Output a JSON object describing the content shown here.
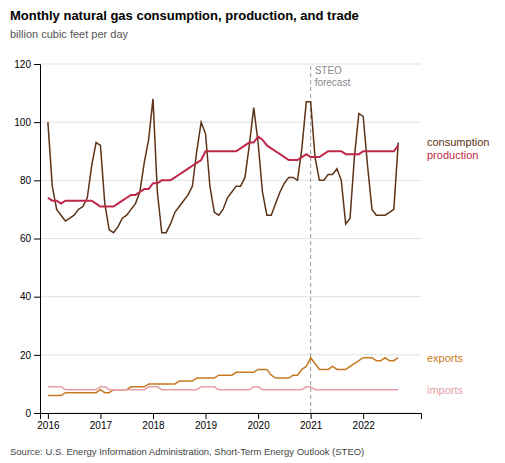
{
  "chart_data": {
    "type": "line",
    "title": "Monthly natural gas consumption, production, and trade",
    "subtitle": "billion cubic feet per day",
    "source": "Source: U.S. Energy Information Administration, Short-Term Energy Outlook (STEO)",
    "x": [
      2016.0,
      2016.083,
      2016.167,
      2016.25,
      2016.333,
      2016.417,
      2016.5,
      2016.583,
      2016.667,
      2016.75,
      2016.833,
      2016.917,
      2017.0,
      2017.083,
      2017.167,
      2017.25,
      2017.333,
      2017.417,
      2017.5,
      2017.583,
      2017.667,
      2017.75,
      2017.833,
      2017.917,
      2018.0,
      2018.083,
      2018.167,
      2018.25,
      2018.333,
      2018.417,
      2018.5,
      2018.583,
      2018.667,
      2018.75,
      2018.833,
      2018.917,
      2019.0,
      2019.083,
      2019.167,
      2019.25,
      2019.333,
      2019.417,
      2019.5,
      2019.583,
      2019.667,
      2019.75,
      2019.833,
      2019.917,
      2020.0,
      2020.083,
      2020.167,
      2020.25,
      2020.333,
      2020.417,
      2020.5,
      2020.583,
      2020.667,
      2020.75,
      2020.833,
      2020.917,
      2021.0,
      2021.083,
      2021.167,
      2021.25,
      2021.333,
      2021.417,
      2021.5,
      2021.583,
      2021.667,
      2021.75,
      2021.833,
      2021.917,
      2022.0,
      2022.083,
      2022.167,
      2022.25,
      2022.333,
      2022.417,
      2022.5,
      2022.583,
      2022.667
    ],
    "series": [
      {
        "name": "consumption",
        "color": "#5C3317",
        "values": [
          100,
          78,
          70,
          68,
          66,
          67,
          68,
          70,
          71,
          74,
          85,
          93,
          92,
          72,
          63,
          62,
          64,
          67,
          68,
          70,
          72,
          76,
          86,
          94,
          108,
          76,
          62,
          62,
          65,
          69,
          71,
          73,
          75,
          78,
          90,
          100,
          96,
          78,
          69,
          68,
          70,
          74,
          76,
          78,
          78,
          81,
          92,
          105,
          93,
          76,
          68,
          68,
          72,
          76,
          79,
          81,
          81,
          80,
          91,
          107,
          107,
          88,
          80,
          80,
          82,
          82,
          84,
          80,
          65,
          67,
          88,
          103,
          102,
          85,
          70,
          68,
          68,
          68,
          69,
          70,
          93
        ]
      },
      {
        "name": "production",
        "color": "#C0284A",
        "values": [
          74,
          73,
          73,
          72,
          73,
          73,
          73,
          73,
          73,
          73,
          73,
          72,
          71,
          71,
          71,
          71,
          72,
          73,
          74,
          75,
          75,
          76,
          77,
          77,
          79,
          79,
          80,
          80,
          80,
          81,
          82,
          83,
          84,
          85,
          86,
          87,
          90,
          90,
          90,
          90,
          90,
          90,
          90,
          90,
          91,
          92,
          93,
          93,
          95,
          94,
          92,
          91,
          90,
          89,
          88,
          87,
          87,
          87,
          88,
          89,
          88,
          88,
          88,
          89,
          90,
          90,
          90,
          90,
          89,
          89,
          89,
          89,
          90,
          90,
          90,
          90,
          90,
          90,
          90,
          90,
          92
        ]
      },
      {
        "name": "exports",
        "color": "#C87820",
        "values": [
          6,
          6,
          6,
          6,
          7,
          7,
          7,
          7,
          7,
          7,
          7,
          7,
          8,
          7,
          7,
          8,
          8,
          8,
          8,
          9,
          9,
          9,
          9,
          10,
          10,
          10,
          10,
          10,
          10,
          10,
          11,
          11,
          11,
          11,
          12,
          12,
          12,
          12,
          12,
          13,
          13,
          13,
          13,
          14,
          14,
          14,
          14,
          14,
          15,
          15,
          15,
          13,
          12,
          12,
          12,
          12,
          13,
          13,
          15,
          16,
          19,
          17,
          15,
          15,
          15,
          16,
          15,
          15,
          15,
          16,
          17,
          18,
          19,
          19,
          19,
          18,
          18,
          19,
          18,
          18,
          19
        ]
      },
      {
        "name": "imports",
        "color": "#E8A0A8",
        "values": [
          9,
          9,
          9,
          9,
          8,
          8,
          8,
          8,
          8,
          8,
          8,
          8,
          9,
          9,
          8,
          8,
          8,
          8,
          8,
          8,
          8,
          8,
          8,
          9,
          9,
          9,
          8,
          8,
          8,
          8,
          8,
          8,
          8,
          8,
          8,
          9,
          9,
          9,
          9,
          8,
          8,
          8,
          8,
          8,
          8,
          8,
          8,
          9,
          9,
          8,
          8,
          8,
          8,
          8,
          8,
          8,
          8,
          8,
          8,
          9,
          9,
          8,
          8,
          8,
          8,
          8,
          8,
          8,
          8,
          8,
          8,
          8,
          8,
          8,
          8,
          8,
          8,
          8,
          8,
          8,
          8
        ]
      }
    ],
    "annotations": [
      {
        "x": 2021.0,
        "text": "STEO\nforecast"
      }
    ],
    "xlim": [
      2015.85,
      2023.1
    ],
    "xticks": [
      2016,
      2017,
      2018,
      2019,
      2020,
      2021,
      2022
    ],
    "ylim": [
      0,
      120
    ],
    "yticks": [
      0,
      20,
      40,
      60,
      80,
      100,
      120
    ],
    "grid": "y"
  }
}
